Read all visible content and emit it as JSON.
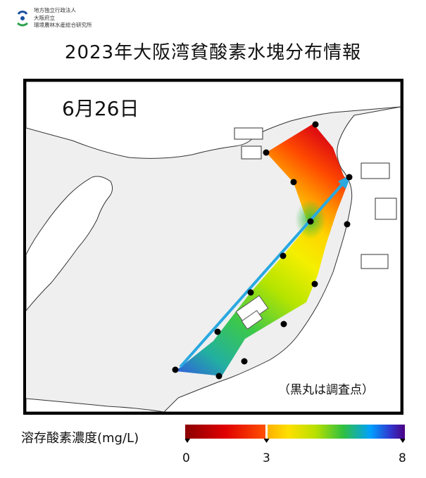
{
  "header": {
    "logo_lines": [
      "地方独立行政法人",
      "大阪府立",
      "環境農林水産総合研究所"
    ],
    "logo_icon": "institute-logo-icon",
    "title": "2023年大阪湾貧酸素水塊分布情報"
  },
  "map": {
    "date_label": "6月26日",
    "note": "（黒丸は調査点）",
    "colors": {
      "land": "#ffffff",
      "sea": "#efefef",
      "station": "#000000",
      "arrow": "#2aa8e0"
    }
  },
  "legend": {
    "label": "溶存酸素濃度(mg/L)",
    "ticks": [
      "0",
      "3",
      "8"
    ],
    "colors": [
      "#8b0000",
      "#ff0000",
      "#ff7a00",
      "#ffd000",
      "#ffff00",
      "#7fe000",
      "#2fc040",
      "#00a0ff",
      "#3333cc",
      "#4b0082"
    ]
  }
}
